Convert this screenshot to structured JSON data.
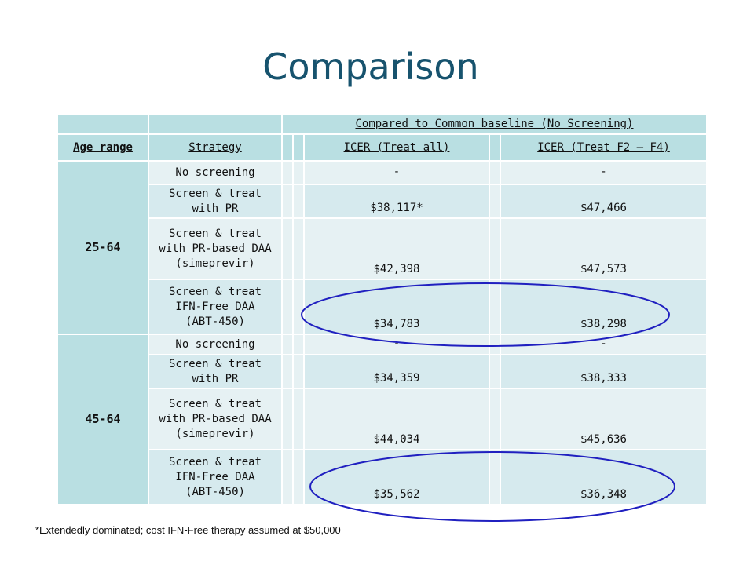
{
  "title": "Comparison",
  "table": {
    "group_header": "Compared to Common baseline (No Screening)",
    "columns": {
      "age": "Age range",
      "strategy": "Strategy",
      "icer_all": "ICER (Treat all)",
      "icer_f2f4": "ICER (Treat F2 – F4)"
    },
    "groups": [
      {
        "age": "25-64",
        "rows": [
          {
            "strategy": [
              "No screening"
            ],
            "icer_all": "-",
            "icer_f2f4": "-"
          },
          {
            "strategy": [
              "Screen & treat",
              "with PR"
            ],
            "icer_all": "$38,117*",
            "icer_f2f4": "$47,466"
          },
          {
            "strategy": [
              "Screen & treat",
              "with PR-based DAA",
              "(simeprevir)"
            ],
            "icer_all": "$42,398",
            "icer_f2f4": "$47,573"
          },
          {
            "strategy": [
              "Screen & treat",
              "IFN-Free DAA",
              "(ABT-450)"
            ],
            "icer_all": "$34,783",
            "icer_f2f4": "$38,298"
          }
        ]
      },
      {
        "age": "45-64",
        "rows": [
          {
            "strategy": [
              "No screening"
            ],
            "icer_all": "-",
            "icer_f2f4": "-"
          },
          {
            "strategy": [
              "Screen & treat",
              "with PR"
            ],
            "icer_all": "$34,359",
            "icer_f2f4": "$38,333"
          },
          {
            "strategy": [
              "Screen & treat",
              "with PR-based DAA",
              "(simeprevir)"
            ],
            "icer_all": "$44,034",
            "icer_f2f4": "$45,636"
          },
          {
            "strategy": [
              "Screen & treat",
              "IFN-Free DAA",
              "(ABT-450)"
            ],
            "icer_all": "$35,562",
            "icer_f2f4": "$36,348"
          }
        ]
      }
    ]
  },
  "footnote": "*Extendedly dominated; cost IFN-Free therapy assumed at $50,000",
  "colors": {
    "title": "#17536e",
    "header_bg": "#b9dfe2",
    "row_bg": "#e6f1f3",
    "row_alt_bg": "#d6eaee",
    "highlight_oval": "#2020c0"
  }
}
